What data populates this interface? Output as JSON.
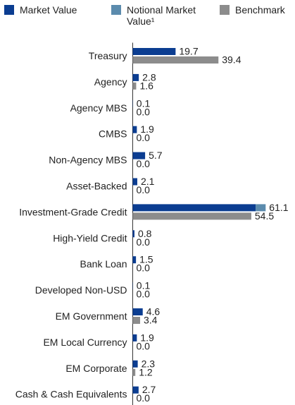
{
  "chart_data": {
    "type": "bar",
    "orientation": "horizontal",
    "stacked_series": [
      "Market Value",
      "Notional Market Value¹"
    ],
    "categories": [
      "Treasury",
      "Agency",
      "Agency MBS",
      "CMBS",
      "Non-Agency MBS",
      "Asset-Backed",
      "Investment-Grade Credit",
      "High-Yield Credit",
      "Bank Loan",
      "Developed Non-USD",
      "EM Government",
      "EM Local Currency",
      "EM Corporate",
      "Cash & Cash Equivalents"
    ],
    "series": [
      {
        "name": "Market Value",
        "color": "#0b3d91",
        "values": [
          19.7,
          2.8,
          0.1,
          1.9,
          5.7,
          2.1,
          56.5,
          0.8,
          1.5,
          0.1,
          4.6,
          1.9,
          2.3,
          2.7
        ]
      },
      {
        "name": "Notional Market Value¹",
        "color": "#5b8bad",
        "values": [
          0,
          0,
          0,
          0,
          0,
          0,
          4.6,
          0,
          0,
          0,
          0,
          0,
          0,
          0
        ]
      },
      {
        "name": "Benchmark",
        "color": "#8c8c8c",
        "values": [
          39.4,
          1.6,
          0.0,
          0.0,
          0.0,
          0.0,
          54.5,
          0.0,
          0.0,
          0.0,
          3.4,
          0.0,
          1.2,
          0.0
        ]
      }
    ],
    "data_labels": {
      "portfolio": [
        "19.7",
        "2.8",
        "0.1",
        "1.9",
        "5.7",
        "2.1",
        "61.1",
        "0.8",
        "1.5",
        "0.1",
        "4.6",
        "1.9",
        "2.3",
        "2.7"
      ],
      "benchmark": [
        "39.4",
        "1.6",
        "0.0",
        "0.0",
        "0.0",
        "0.0",
        "54.5",
        "0.0",
        "0.0",
        "0.0",
        "3.4",
        "0.0",
        "1.2",
        "0.0"
      ]
    },
    "xlim": [
      0,
      70
    ],
    "grid": false,
    "legend_position": "top"
  }
}
